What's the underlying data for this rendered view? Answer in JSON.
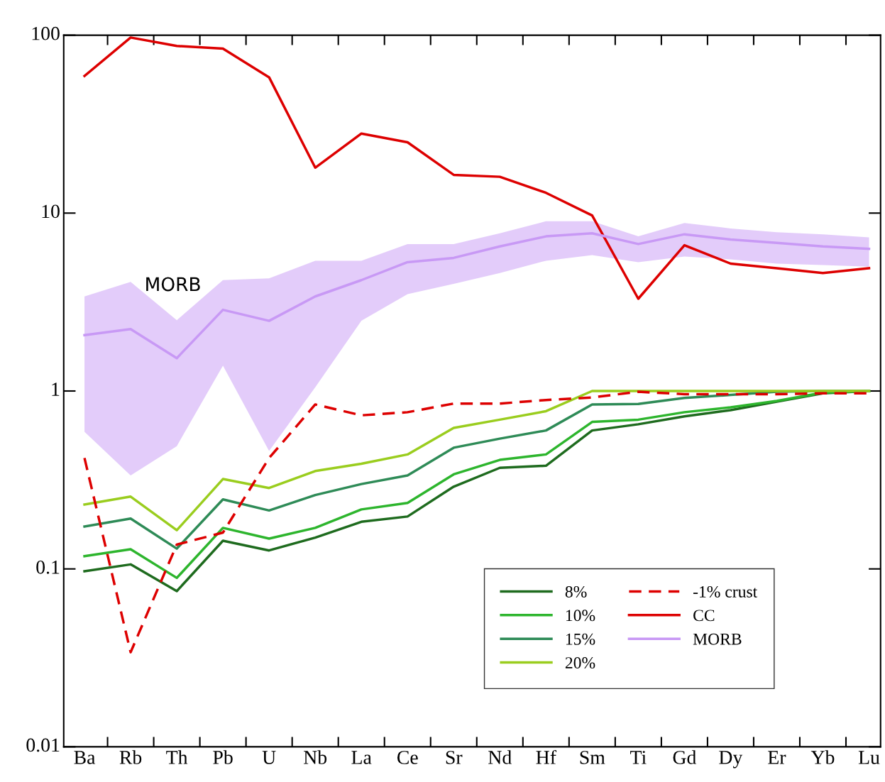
{
  "chart_data": {
    "type": "line",
    "categories": [
      "Ba",
      "Rb",
      "Th",
      "Pb",
      "U",
      "Nb",
      "La",
      "Ce",
      "Sr",
      "Nd",
      "Hf",
      "Sm",
      "Ti",
      "Gd",
      "Dy",
      "Er",
      "Yb",
      "Lu"
    ],
    "log": true,
    "ylim": [
      0.01,
      100
    ],
    "yticks": [
      0.01,
      0.1,
      1,
      10,
      100
    ],
    "grid": false,
    "legend": "bottom right",
    "marker": "none",
    "annotations": [
      "MORB"
    ],
    "series": [
      {
        "name": "8%",
        "color": "#1e6b1e",
        "values": [
          0.097,
          0.106,
          0.075,
          0.144,
          0.127,
          0.15,
          0.184,
          0.197,
          0.29,
          0.37,
          0.38,
          0.6,
          0.65,
          0.72,
          0.78,
          0.87,
          0.97,
          1.0
        ]
      },
      {
        "name": "10%",
        "color": "#2db52d",
        "values": [
          0.118,
          0.129,
          0.089,
          0.17,
          0.148,
          0.17,
          0.216,
          0.235,
          0.34,
          0.41,
          0.44,
          0.67,
          0.69,
          0.76,
          0.81,
          0.88,
          0.98,
          1.0
        ]
      },
      {
        "name": "15%",
        "color": "#2e8b57",
        "values": [
          0.173,
          0.192,
          0.13,
          0.246,
          0.213,
          0.26,
          0.3,
          0.335,
          0.48,
          0.54,
          0.6,
          0.84,
          0.845,
          0.915,
          0.95,
          0.99,
          1.0,
          1.0
        ]
      },
      {
        "name": "20%",
        "color": "#9acd1e",
        "values": [
          0.23,
          0.255,
          0.165,
          0.32,
          0.285,
          0.355,
          0.39,
          0.44,
          0.62,
          0.69,
          0.77,
          1.0,
          1.0,
          1.0,
          1.0,
          1.0,
          1.0,
          1.0
        ]
      },
      {
        "name": "-1% crust",
        "color": "#dd0000",
        "line_style": "dashed",
        "values": [
          0.42,
          0.034,
          0.137,
          0.16,
          0.42,
          0.84,
          0.73,
          0.76,
          0.85,
          0.85,
          0.89,
          0.92,
          0.99,
          0.96,
          0.96,
          0.96,
          0.97,
          0.97
        ]
      },
      {
        "name": "CC",
        "color": "#dd0000",
        "values": [
          59,
          97,
          87,
          84,
          58,
          18,
          28,
          25,
          16.4,
          16,
          13,
          9.7,
          3.3,
          6.6,
          5.2,
          4.9,
          4.6,
          4.9
        ]
      },
      {
        "name": "MORB",
        "color": "#c899f5",
        "values": [
          2.06,
          2.23,
          1.53,
          2.86,
          2.48,
          3.4,
          4.2,
          5.3,
          5.6,
          6.5,
          7.4,
          7.7,
          6.7,
          7.6,
          7.1,
          6.8,
          6.5,
          6.3
        ],
        "lower": [
          0.59,
          0.335,
          0.49,
          1.39,
          0.46,
          1.05,
          2.48,
          3.5,
          4.0,
          4.6,
          5.4,
          5.8,
          5.3,
          5.7,
          5.5,
          5.2,
          5.1,
          5.0
        ],
        "upper": [
          3.4,
          4.1,
          2.5,
          4.2,
          4.3,
          5.4,
          5.4,
          6.7,
          6.7,
          7.7,
          9.0,
          9.0,
          7.4,
          8.8,
          8.2,
          7.8,
          7.6,
          7.3
        ]
      }
    ]
  }
}
